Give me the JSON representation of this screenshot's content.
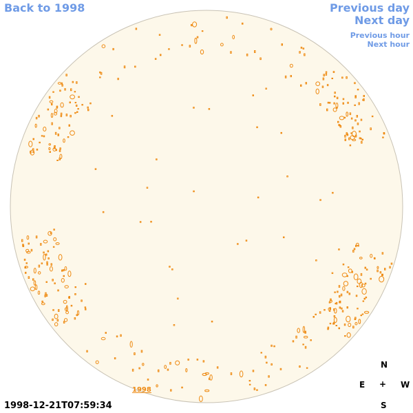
{
  "nav": {
    "back_label": "Back to 1998",
    "previous_day": "Previous day",
    "next_day": "Next day",
    "previous_hour": "Previous hour",
    "next_hour": "Next hour"
  },
  "image": {
    "timestamp": "1998-12-21T07:59:34",
    "year_label": "1998"
  },
  "compass": {
    "north": "N",
    "east": "E",
    "center": "+",
    "west": "W",
    "south": "S"
  },
  "colors": {
    "link": "#6f9be6",
    "disk_fill": "#fdf8ea",
    "disk_edge": "#c8c2b4",
    "contour": "#ee8a12"
  },
  "icons": [
    "sun-disk-image",
    "compass-rose"
  ]
}
